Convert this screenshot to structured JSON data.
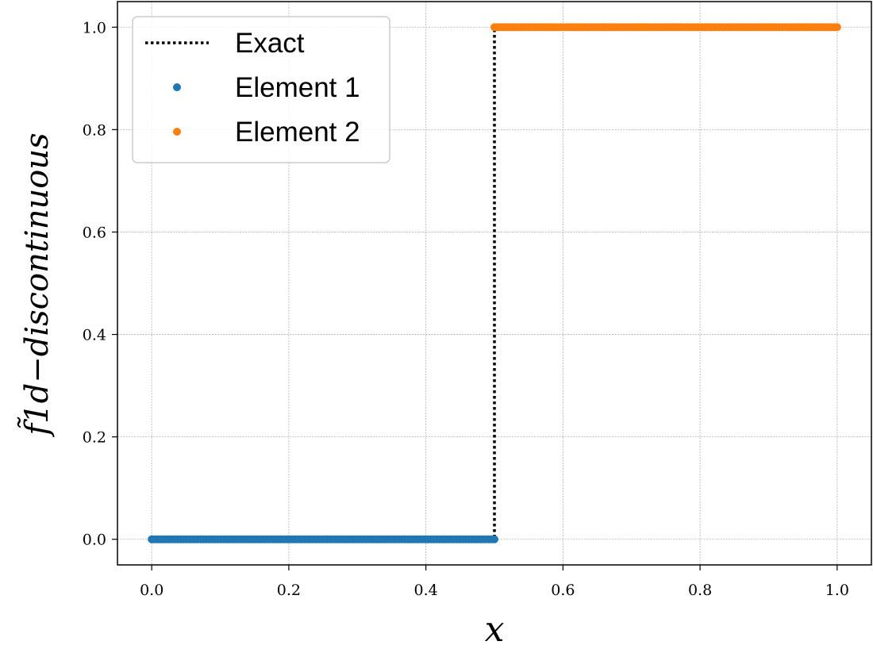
{
  "chart_data": {
    "type": "line",
    "xlabel": "x",
    "ylabel": "f̃1d−discontinuous",
    "xlim": [
      -0.05,
      1.05
    ],
    "ylim": [
      -0.05,
      1.05
    ],
    "x_ticks": [
      "0.0",
      "0.2",
      "0.4",
      "0.6",
      "0.8",
      "1.0"
    ],
    "y_ticks": [
      "0.0",
      "0.2",
      "0.4",
      "0.6",
      "0.8",
      "1.0"
    ],
    "grid": true,
    "legend_position": "top-left",
    "series": [
      {
        "name": "Exact",
        "style": "dotted-line",
        "color": "#000000",
        "x": [
          0.0,
          0.5,
          0.5,
          1.0
        ],
        "y": [
          0.0,
          0.0,
          1.0,
          1.0
        ]
      },
      {
        "name": "Element 1",
        "style": "markers",
        "color": "#1f77b4",
        "x_range": [
          0.0,
          0.5
        ],
        "y_value": 0.0,
        "points": 120
      },
      {
        "name": "Element 2",
        "style": "markers",
        "color": "#ff7f0e",
        "x_range": [
          0.5,
          1.0
        ],
        "y_value": 1.0,
        "points": 120
      }
    ]
  }
}
